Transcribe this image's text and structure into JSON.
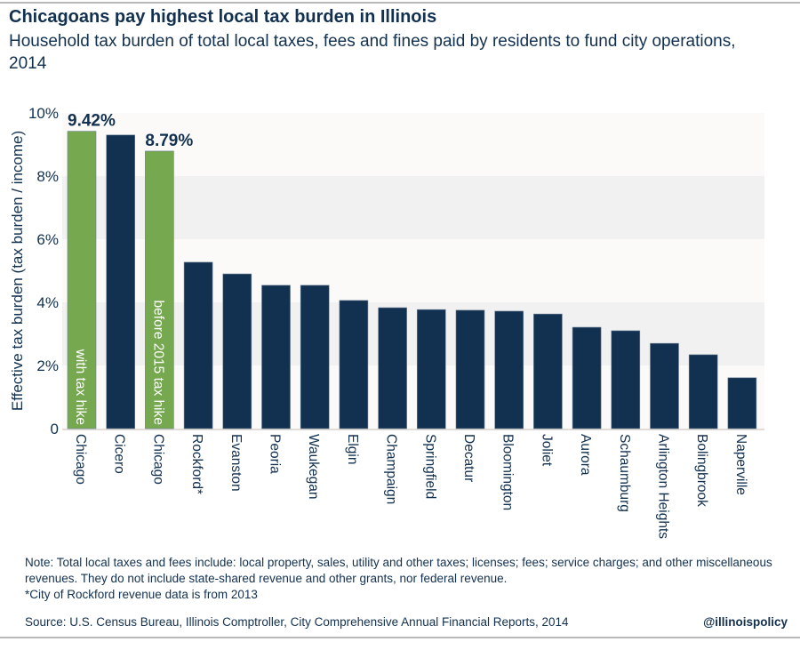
{
  "title": "Chicagoans pay highest local tax burden in Illinois",
  "subtitle": "Household tax burden of total local taxes, fees and fines paid by residents to fund city operations, 2014",
  "note": "Note: Total local taxes and fees include: local property, sales, utility and other taxes; licenses; fees; service charges; and other miscellaneous revenues. They do not include state-shared revenue and other grants, nor federal revenue.",
  "footnote": "*City of Rockford revenue data is from 2013",
  "source": "Source: U.S. Census Bureau, Illinois Comptroller, City Comprehensive Annual Financial Reports, 2014",
  "handle": "@illinoispolicy",
  "chart_data": {
    "type": "bar",
    "ylabel": "Effective tax burden (tax burden / income)",
    "ylim": [
      0,
      10
    ],
    "yticks": [
      {
        "v": 0,
        "label": "0"
      },
      {
        "v": 2,
        "label": "2%"
      },
      {
        "v": 4,
        "label": "4%"
      },
      {
        "v": 6,
        "label": "6%"
      },
      {
        "v": 8,
        "label": "8%"
      },
      {
        "v": 10,
        "label": "10%"
      }
    ],
    "grid": "alternating bands",
    "categories": [
      "Chicago",
      "Cicero",
      "Chicago",
      "Rockford*",
      "Evanston",
      "Peoria",
      "Waukegan",
      "Elgin",
      "Champaign",
      "Springfield",
      "Decatur",
      "Bloomington",
      "Joliet",
      "Aurora",
      "Schaumburg",
      "Arlington Heights",
      "Bolingbrook",
      "Naperville"
    ],
    "values": [
      9.42,
      9.3,
      8.79,
      5.27,
      4.9,
      4.54,
      4.54,
      4.06,
      3.83,
      3.77,
      3.75,
      3.72,
      3.63,
      3.21,
      3.1,
      2.7,
      2.34,
      1.61
    ],
    "highlight": [
      true,
      false,
      true,
      false,
      false,
      false,
      false,
      false,
      false,
      false,
      false,
      false,
      false,
      false,
      false,
      false,
      false,
      false
    ],
    "data_labels": {
      "0": "9.42%",
      "2": "8.79%"
    },
    "bar_annotations": {
      "0": "with tax hike",
      "2": "before 2015 tax hike"
    },
    "colors": {
      "default": "#12304f",
      "highlight": "#76a84f",
      "band_light": "#fbfaf8",
      "band_dark": "#f1f1f1",
      "text": "#12304f"
    }
  }
}
